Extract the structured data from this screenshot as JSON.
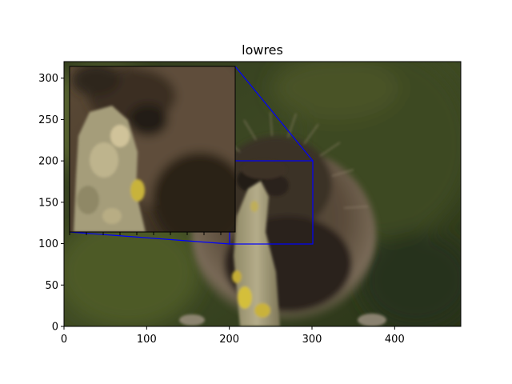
{
  "chart_data": {
    "type": "image",
    "title": "lowres",
    "subject": "porcupine holding a lichen-covered branch, blurred green forest background",
    "xlim": [
      0,
      480
    ],
    "ylim": [
      0,
      320
    ],
    "x_ticks": [
      0,
      100,
      200,
      300,
      400
    ],
    "y_ticks": [
      0,
      50,
      100,
      150,
      200,
      250,
      300
    ],
    "zoom_region": {
      "x": [
        200,
        300
      ],
      "y": [
        100,
        200
      ],
      "outline_color": "#0000ff"
    },
    "inset": {
      "description": "magnified view of the zoomed region",
      "axis_ticks_visible": false
    },
    "colors": {
      "background_forest": "#2f3a1c",
      "fur": "#5a4b3a",
      "branch": "#a8a07a",
      "lichen": "#c9b23a",
      "zoom_outline": "#0000ff"
    }
  }
}
